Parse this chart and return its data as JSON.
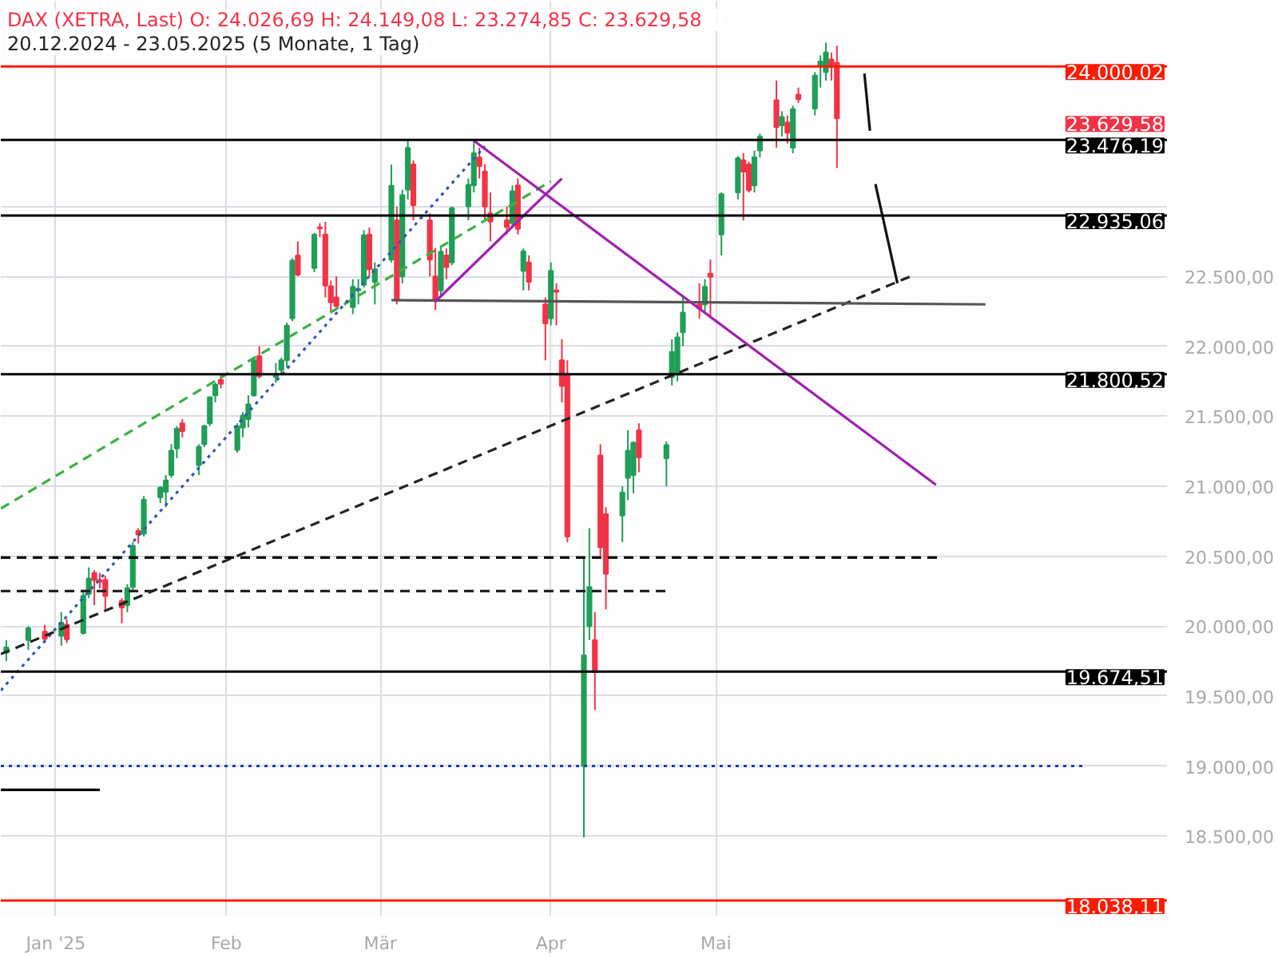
{
  "chart_data": {
    "type": "candlestick",
    "title": "DAX (XETRA, Last)  O: 24.026,69  H: 24.149,08  L: 23.274,85  C: 23.629,58",
    "subtitle": "20.12.2024 - 23.05.2025  (5 Monate, 1 Tag)",
    "x": [
      "2024-12-23",
      "2024-12-27",
      "2024-12-30",
      "2025-01-02",
      "2025-01-03",
      "2025-01-06",
      "2025-01-07",
      "2025-01-08",
      "2025-01-09",
      "2025-01-10",
      "2025-01-13",
      "2025-01-14",
      "2025-01-15",
      "2025-01-16",
      "2025-01-17",
      "2025-01-20",
      "2025-01-21",
      "2025-01-22",
      "2025-01-23",
      "2025-01-24",
      "2025-01-27",
      "2025-01-28",
      "2025-01-29",
      "2025-01-30",
      "2025-01-31",
      "2025-02-03",
      "2025-02-04",
      "2025-02-05",
      "2025-02-06",
      "2025-02-07",
      "2025-02-10",
      "2025-02-11",
      "2025-02-12",
      "2025-02-13",
      "2025-02-14",
      "2025-02-17",
      "2025-02-18",
      "2025-02-19",
      "2025-02-20",
      "2025-02-21",
      "2025-02-24",
      "2025-02-25",
      "2025-02-26",
      "2025-02-27",
      "2025-02-28",
      "2025-03-03",
      "2025-03-04",
      "2025-03-05",
      "2025-03-06",
      "2025-03-07",
      "2025-03-10",
      "2025-03-11",
      "2025-03-12",
      "2025-03-13",
      "2025-03-14",
      "2025-03-17",
      "2025-03-18",
      "2025-03-19",
      "2025-03-20",
      "2025-03-21",
      "2025-03-24",
      "2025-03-25",
      "2025-03-26",
      "2025-03-27",
      "2025-03-28",
      "2025-03-31",
      "2025-04-01",
      "2025-04-02",
      "2025-04-03",
      "2025-04-04",
      "2025-04-07",
      "2025-04-08",
      "2025-04-09",
      "2025-04-10",
      "2025-04-11",
      "2025-04-14",
      "2025-04-15",
      "2025-04-16",
      "2025-04-17",
      "2025-04-22",
      "2025-04-23",
      "2025-04-24",
      "2025-04-25",
      "2025-04-28",
      "2025-04-29",
      "2025-04-30",
      "2025-05-02",
      "2025-05-05",
      "2025-05-06",
      "2025-05-07",
      "2025-05-08",
      "2025-05-09",
      "2025-05-12",
      "2025-05-13",
      "2025-05-14",
      "2025-05-15",
      "2025-05-16",
      "2025-05-19",
      "2025-05-20",
      "2025-05-21",
      "2025-05-22",
      "2025-05-23"
    ],
    "ohlc": [
      [
        19810,
        19900,
        19750,
        19848
      ],
      [
        19900,
        20000,
        19830,
        19984
      ],
      [
        19960,
        20010,
        19880,
        19909
      ],
      [
        19930,
        20100,
        19860,
        20025
      ],
      [
        20010,
        20050,
        19880,
        19906
      ],
      [
        19950,
        20260,
        19940,
        20217
      ],
      [
        20230,
        20420,
        20200,
        20340
      ],
      [
        20380,
        20400,
        20150,
        20329
      ],
      [
        20330,
        20380,
        20270,
        20317
      ],
      [
        20330,
        20360,
        20110,
        20215
      ],
      [
        20180,
        20200,
        20020,
        20133
      ],
      [
        20150,
        20300,
        20100,
        20271
      ],
      [
        20280,
        20600,
        20250,
        20574
      ],
      [
        20680,
        20700,
        20590,
        20655
      ],
      [
        20660,
        20930,
        20640,
        20903
      ],
      [
        20920,
        21000,
        20880,
        20990
      ],
      [
        20960,
        21080,
        20850,
        21042
      ],
      [
        21080,
        21300,
        21060,
        21254
      ],
      [
        21270,
        21430,
        21200,
        21411
      ],
      [
        21450,
        21480,
        21350,
        21394
      ],
      [
        21150,
        21300,
        21080,
        21282
      ],
      [
        21300,
        21440,
        21280,
        21430
      ],
      [
        21450,
        21640,
        21430,
        21637
      ],
      [
        21650,
        21740,
        21600,
        21727
      ],
      [
        21760,
        21800,
        21700,
        21732
      ],
      [
        21260,
        21450,
        21240,
        21428
      ],
      [
        21420,
        21530,
        21350,
        21505
      ],
      [
        21480,
        21650,
        21420,
        21585
      ],
      [
        21650,
        21920,
        21640,
        21902
      ],
      [
        21930,
        22000,
        21770,
        21787
      ],
      [
        21780,
        21880,
        21740,
        21800
      ],
      [
        21830,
        21920,
        21800,
        21900
      ],
      [
        21900,
        22170,
        21850,
        22148
      ],
      [
        22200,
        22630,
        22180,
        22612
      ],
      [
        22650,
        22750,
        22500,
        22513
      ],
      [
        22560,
        22810,
        22530,
        22798
      ],
      [
        22850,
        22880,
        22780,
        22844
      ],
      [
        22800,
        22890,
        22350,
        22434
      ],
      [
        22430,
        22470,
        22250,
        22314
      ],
      [
        22350,
        22500,
        22280,
        22287
      ],
      [
        22280,
        22480,
        22230,
        22426
      ],
      [
        22400,
        22480,
        22300,
        22410
      ],
      [
        22440,
        22830,
        22420,
        22794
      ],
      [
        22800,
        22850,
        22500,
        22551
      ],
      [
        22460,
        22600,
        22300,
        22551
      ],
      [
        22620,
        23300,
        22600,
        23147
      ],
      [
        22900,
        23000,
        22300,
        22327
      ],
      [
        22500,
        23120,
        22450,
        23081
      ],
      [
        23120,
        23476,
        23050,
        23419
      ],
      [
        23300,
        23330,
        22900,
        23009
      ],
      [
        22900,
        22950,
        22500,
        22620
      ],
      [
        22500,
        22700,
        22260,
        22329
      ],
      [
        22400,
        22710,
        22350,
        22676
      ],
      [
        22650,
        22700,
        22480,
        22567
      ],
      [
        22600,
        23000,
        22580,
        22987
      ],
      [
        23000,
        23200,
        22900,
        23154
      ],
      [
        23150,
        23475,
        23100,
        23380
      ],
      [
        23350,
        23420,
        23200,
        23288
      ],
      [
        23250,
        23300,
        22900,
        22999
      ],
      [
        22950,
        23100,
        22750,
        22892
      ],
      [
        22900,
        23000,
        22800,
        22852
      ],
      [
        22880,
        23150,
        22850,
        23109
      ],
      [
        23150,
        23200,
        22800,
        22839
      ],
      [
        22540,
        22700,
        22400,
        22679
      ],
      [
        22600,
        22650,
        22400,
        22461
      ],
      [
        22300,
        22350,
        21900,
        22163
      ],
      [
        22200,
        22600,
        22150,
        22539
      ],
      [
        22400,
        22450,
        22150,
        22390
      ],
      [
        21900,
        22050,
        21600,
        21717
      ],
      [
        21800,
        21900,
        20600,
        20641
      ],
      [
        19000,
        20500,
        18489,
        19790
      ],
      [
        20000,
        20700,
        19900,
        20280
      ],
      [
        19900,
        20100,
        19400,
        19670
      ],
      [
        21220,
        21300,
        20500,
        20563
      ],
      [
        20800,
        20850,
        20120,
        20374
      ],
      [
        20790,
        21000,
        20600,
        20955
      ],
      [
        21060,
        21400,
        20900,
        21254
      ],
      [
        21080,
        21320,
        20950,
        21311
      ],
      [
        21400,
        21450,
        21100,
        21205
      ],
      [
        21200,
        21320,
        21000,
        21294
      ],
      [
        21780,
        22050,
        21720,
        21961
      ],
      [
        21800,
        22100,
        21750,
        22065
      ],
      [
        22100,
        22350,
        22000,
        22242
      ],
      [
        22300,
        22450,
        22200,
        22272
      ],
      [
        22300,
        22480,
        22250,
        22426
      ],
      [
        22520,
        22620,
        22200,
        22497
      ],
      [
        22800,
        23100,
        22650,
        23087
      ],
      [
        23100,
        23360,
        23050,
        23345
      ],
      [
        23330,
        23380,
        22900,
        23249
      ],
      [
        23300,
        23320,
        23100,
        23116
      ],
      [
        23150,
        23400,
        23100,
        23352
      ],
      [
        23400,
        23520,
        23350,
        23499
      ],
      [
        23760,
        23900,
        23420,
        23567
      ],
      [
        23580,
        23680,
        23500,
        23639
      ],
      [
        23600,
        23650,
        23450,
        23527
      ],
      [
        23420,
        23720,
        23380,
        23696
      ],
      [
        23800,
        23850,
        23740,
        23767
      ],
      [
        23700,
        23960,
        23650,
        23935
      ],
      [
        24000,
        24080,
        23850,
        24036
      ],
      [
        23960,
        24170,
        23900,
        24100
      ],
      [
        24050,
        24100,
        23900,
        23999
      ],
      [
        24026.69,
        24149.08,
        23274.85,
        23629.58
      ]
    ],
    "colors": [
      "#1f9e57",
      "#1f9e57",
      "#f23346",
      "#1f9e57",
      "#f23346",
      "#1f9e57",
      "#1f9e57",
      "#f23346",
      "#f23346",
      "#f23346",
      "#f23346",
      "#1f9e57",
      "#1f9e57",
      "#f23346",
      "#1f9e57",
      "#1f9e57",
      "#1f9e57",
      "#1f9e57",
      "#1f9e57",
      "#f23346",
      "#1f9e57",
      "#1f9e57",
      "#1f9e57",
      "#1f9e57",
      "#f23346",
      "#1f9e57",
      "#1f9e57",
      "#1f9e57",
      "#1f9e57",
      "#f23346",
      "#1f9e57",
      "#1f9e57",
      "#1f9e57",
      "#1f9e57",
      "#f23346",
      "#1f9e57",
      "#f23346",
      "#f23346",
      "#f23346",
      "#f23346",
      "#1f9e57",
      "#1f9e57",
      "#1f9e57",
      "#f23346",
      "#1f9e57",
      "#1f9e57",
      "#f23346",
      "#1f9e57",
      "#1f9e57",
      "#f23346",
      "#f23346",
      "#f23346",
      "#1f9e57",
      "#f23346",
      "#1f9e57",
      "#1f9e57",
      "#1f9e57",
      "#f23346",
      "#f23346",
      "#f23346",
      "#f23346",
      "#1f9e57",
      "#f23346",
      "#1f9e57",
      "#f23346",
      "#f23346",
      "#1f9e57",
      "#f23346",
      "#f23346",
      "#f23346",
      "#1f9e57",
      "#1f9e57",
      "#f23346",
      "#f23346",
      "#f23346",
      "#1f9e57",
      "#1f9e57",
      "#1f9e57",
      "#f23346",
      "#1f9e57",
      "#1f9e57",
      "#1f9e57",
      "#1f9e57",
      "#f23346",
      "#1f9e57",
      "#f23346",
      "#1f9e57",
      "#1f9e57",
      "#f23346",
      "#f23346",
      "#1f9e57",
      "#1f9e57",
      "#f23346",
      "#1f9e57",
      "#f23346",
      "#1f9e57",
      "#f23346",
      "#1f9e57",
      "#1f9e57",
      "#1f9e57",
      "#f23346",
      "#f23346"
    ],
    "xlim": [
      "2024-12-22",
      "2025-07-22"
    ],
    "xticks": [
      {
        "value": "2025-01-01",
        "label": "Jan '25"
      },
      {
        "value": "2025-02-01",
        "label": "Feb"
      },
      {
        "value": "2025-03-01",
        "label": "Mär"
      },
      {
        "value": "2025-04-01",
        "label": "Apr"
      },
      {
        "value": "2025-05-01",
        "label": "Mai"
      }
    ],
    "ylim": [
      17930,
      24470
    ],
    "yticks": [
      {
        "value": 18500,
        "label": "18.500,00"
      },
      {
        "value": 19000,
        "label": "19.000,00"
      },
      {
        "value": 19500,
        "label": "19.500,00"
      },
      {
        "value": 20000,
        "label": "20.000,00"
      },
      {
        "value": 20500,
        "label": "20.500,00"
      },
      {
        "value": 21000,
        "label": "21.000,00"
      },
      {
        "value": 21500,
        "label": "21.500,00"
      },
      {
        "value": 22000,
        "label": "22.000,00"
      },
      {
        "value": 22500,
        "label": "22.500,00"
      },
      {
        "value": 23000,
        "label": null
      }
    ],
    "grid": true,
    "series": [
      {
        "type": "line",
        "color": "#3cb043",
        "line_style": "dashed",
        "x": [
          "2024-12-22",
          "2025-04-01"
        ],
        "values": [
          20840,
          23180
        ]
      },
      {
        "type": "line",
        "color": "#3355bb",
        "line_style": "dotted",
        "x": [
          "2024-12-22",
          "2025-03-20"
        ],
        "values": [
          19540,
          23430
        ]
      },
      {
        "type": "line",
        "color": "#222222",
        "line_style": "dashed",
        "x": [
          "2024-12-22",
          "2025-06-06"
        ],
        "values": [
          19800,
          22510
        ]
      },
      {
        "type": "line",
        "color": "#222222",
        "line_style": "dashed",
        "x": [
          "2024-12-22",
          "2025-04-22"
        ],
        "values": [
          20250,
          20250
        ]
      },
      {
        "type": "line",
        "color": "#000000",
        "line_style": "dashed",
        "x": [
          "2024-12-22",
          "2025-06-11"
        ],
        "values": [
          20490,
          20490
        ]
      },
      {
        "type": "line",
        "color": "#555555",
        "line_style": "solid",
        "x": [
          "2025-03-03",
          "2025-06-19"
        ],
        "values": [
          22330,
          22300
        ]
      },
      {
        "type": "line",
        "color": "#a020b0",
        "line_style": "solid",
        "x": [
          "2025-03-18",
          "2025-06-10"
        ],
        "values": [
          23470,
          21010
        ]
      },
      {
        "type": "line",
        "color": "#a020b0",
        "line_style": "solid",
        "x": [
          "2025-03-11",
          "2025-04-03"
        ],
        "values": [
          22320,
          23200
        ]
      },
      {
        "type": "line",
        "color": "#1a3fb0",
        "line_style": "dotted",
        "x": [
          "2024-12-22",
          "2025-07-07"
        ],
        "values": [
          19000,
          19000
        ]
      },
      {
        "type": "line",
        "color": "#000000",
        "line_style": "solid",
        "x": [
          "2024-12-22",
          "2025-01-09"
        ],
        "values": [
          18830,
          18830
        ]
      },
      {
        "type": "line",
        "color": "#111111",
        "line_style": "solid",
        "x": [
          "2025-05-28",
          "2025-05-29"
        ],
        "values": [
          23950,
          23540
        ]
      },
      {
        "type": "line",
        "color": "#111111",
        "line_style": "solid",
        "x": [
          "2025-05-30",
          "2025-06-03"
        ],
        "values": [
          23160,
          22450
        ]
      }
    ],
    "ref_lines": [
      {
        "axis": "y",
        "value": 24000.02,
        "label": "24.000,02",
        "color": "#ff1a00"
      },
      {
        "axis": "y",
        "value": 23476.19,
        "label": "23.476,19",
        "color": "#000000"
      },
      {
        "axis": "y",
        "value": 22935.06,
        "label": "22.935,06",
        "color": "#000000"
      },
      {
        "axis": "y",
        "value": 21800.52,
        "label": "21.800,52",
        "color": "#000000"
      },
      {
        "axis": "y",
        "value": 19674.51,
        "label": "19.674,51",
        "color": "#000000"
      },
      {
        "axis": "y",
        "value": 18038.11,
        "label": "18.038,11",
        "color": "#ff1a00"
      }
    ],
    "annotations": [
      "23.629,58"
    ]
  }
}
